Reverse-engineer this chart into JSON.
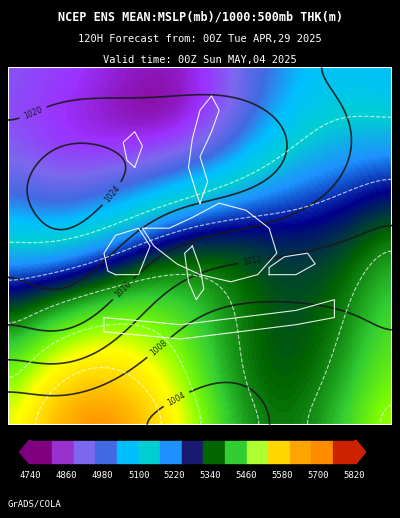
{
  "title_line1": "NCEP ENS MEAN:MSLP(mb)/1000:500mb THK(m)",
  "title_line2": "120H Forecast from: 00Z Tue APR,29 2025",
  "title_line3": "Valid time: 00Z Sun MAY,04 2025",
  "colorbar_values": [
    4740,
    4860,
    4980,
    5100,
    5220,
    5340,
    5460,
    5580,
    5700,
    5820
  ],
  "colorbar_colors": [
    "#9B30FF",
    "#7B2FBE",
    "#6A5ACD",
    "#4169E1",
    "#00BFFF",
    "#00CED1",
    "#1E90FF",
    "#00008B",
    "#006400",
    "#00C000",
    "#7FFF00",
    "#FFFF00",
    "#FFD700",
    "#FFA500",
    "#FF6600",
    "#FF2200"
  ],
  "colorbar_segment_colors": [
    "#800080",
    "#9932CC",
    "#7B68EE",
    "#4169E1",
    "#00BFFF",
    "#00CED1",
    "#1E90FF",
    "#191970",
    "#006400",
    "#32CD32",
    "#ADFF2F",
    "#FFD700",
    "#FFA500",
    "#FF8C00",
    "#CD5C5C"
  ],
  "background_color": "#000000",
  "map_bg_color": "#000000",
  "footer_text": "GrADS/COLA",
  "fig_width": 4.0,
  "fig_height": 5.18
}
